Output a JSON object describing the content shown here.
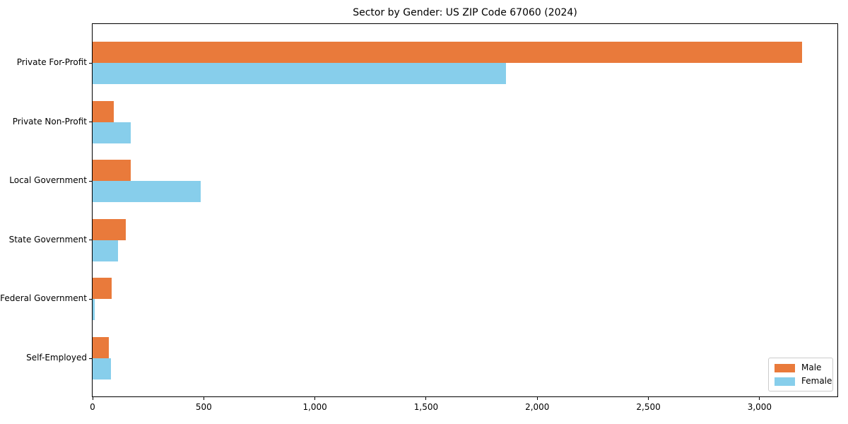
{
  "chart_data": {
    "type": "bar",
    "orientation": "horizontal",
    "title": "Sector by Gender: US ZIP Code 67060 (2024)",
    "categories": [
      "Private For-Profit",
      "Private Non-Profit",
      "Local Government",
      "State Government",
      "Federal Government",
      "Self-Employed"
    ],
    "series": [
      {
        "name": "Male",
        "color": "#e97a3b",
        "values": [
          3190,
          95,
          172,
          148,
          85,
          74
        ]
      },
      {
        "name": "Female",
        "color": "#87ceeb",
        "values": [
          1860,
          172,
          485,
          113,
          9,
          81
        ]
      }
    ],
    "xlabel": "",
    "ylabel": "",
    "xlim": [
      0,
      3350
    ],
    "xticks": [
      0,
      500,
      1000,
      1500,
      2000,
      2500,
      3000
    ],
    "xtick_labels": [
      "0",
      "500",
      "1,000",
      "1,500",
      "2,000",
      "2,500",
      "3,000"
    ],
    "grid": false,
    "legend": {
      "position": "lower right",
      "entries": [
        "Male",
        "Female"
      ]
    }
  }
}
